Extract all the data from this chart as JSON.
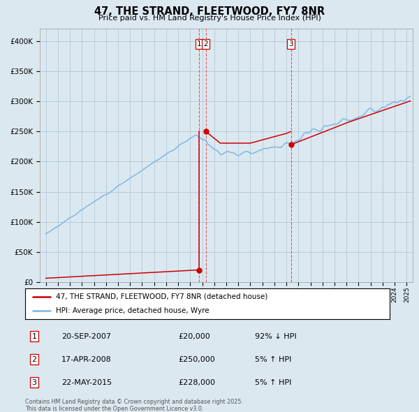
{
  "title": "47, THE STRAND, FLEETWOOD, FY7 8NR",
  "subtitle": "Price paid vs. HM Land Registry's House Price Index (HPI)",
  "hpi_color": "#7ab8e8",
  "price_color": "#cc0000",
  "vline_color": "#cc0000",
  "bg_color": "#dce8f0",
  "plot_bg": "#dce8f0",
  "grid_color": "#b0c8d8",
  "ylim": [
    0,
    420000
  ],
  "yticks": [
    0,
    50000,
    100000,
    150000,
    200000,
    250000,
    300000,
    350000,
    400000
  ],
  "xlim_start": 1994.5,
  "xlim_end": 2025.5,
  "t1": 2007.72,
  "p1": 20000,
  "t2": 2008.29,
  "p2": 250000,
  "t3": 2015.38,
  "p3": 228000,
  "transactions": [
    {
      "label": "1",
      "date_num": 2007.72,
      "price": 20000
    },
    {
      "label": "2",
      "date_num": 2008.29,
      "price": 250000
    },
    {
      "label": "3",
      "date_num": 2015.38,
      "price": 228000
    }
  ],
  "transaction_table": [
    {
      "num": "1",
      "date": "20-SEP-2007",
      "price": "£20,000",
      "hpi": "92% ↓ HPI"
    },
    {
      "num": "2",
      "date": "17-APR-2008",
      "price": "£250,000",
      "hpi": "5% ↑ HPI"
    },
    {
      "num": "3",
      "date": "22-MAY-2015",
      "price": "£228,000",
      "hpi": "5% ↑ HPI"
    }
  ],
  "legend_line1": "47, THE STRAND, FLEETWOOD, FY7 8NR (detached house)",
  "legend_line2": "HPI: Average price, detached house, Wyre",
  "footnote": "Contains HM Land Registry data © Crown copyright and database right 2025.\nThis data is licensed under the Open Government Licence v3.0."
}
